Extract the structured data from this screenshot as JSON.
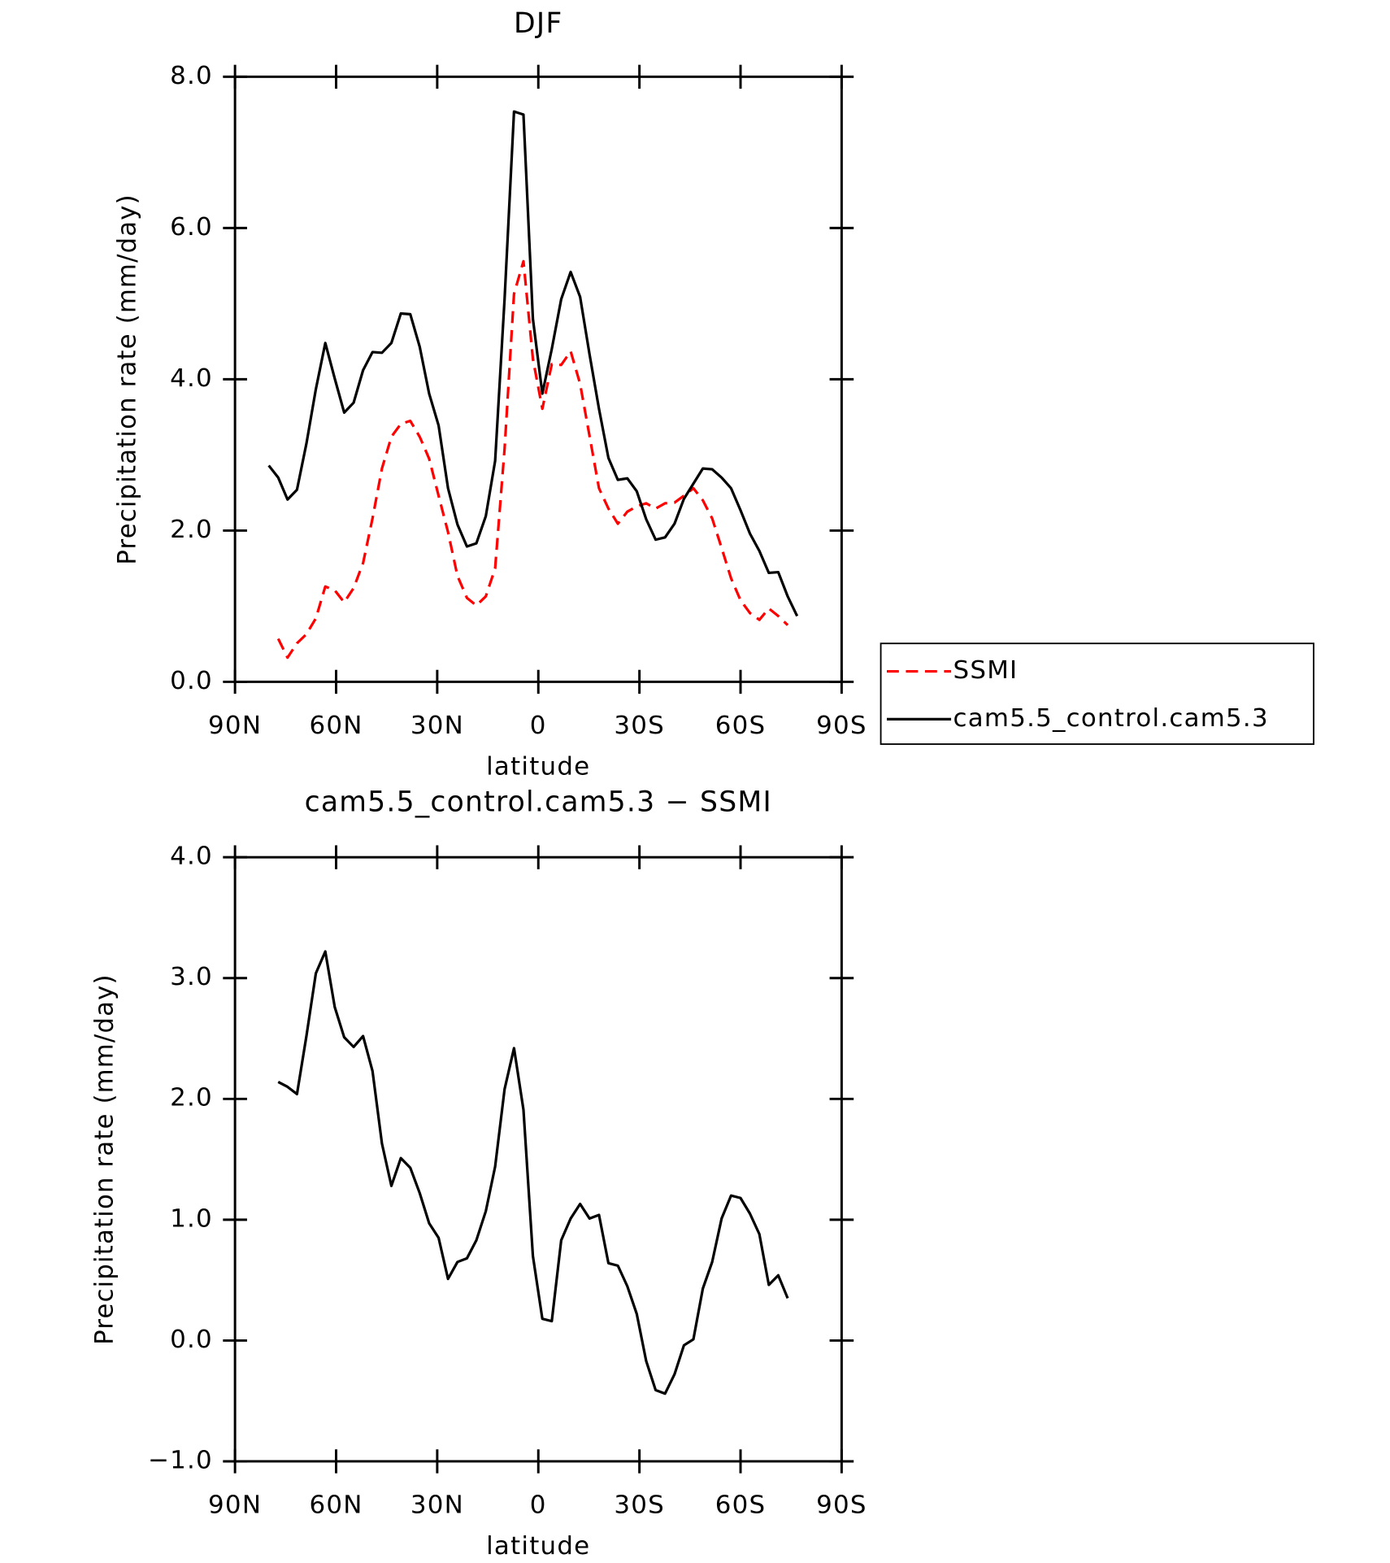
{
  "chart_data": [
    {
      "type": "line",
      "title": "DJF",
      "xlabel": "latitude",
      "ylabel": "Precipitation rate (mm/day)",
      "x": [
        80,
        77.2,
        74.4,
        71.6,
        68.8,
        66,
        63.2,
        60.4,
        57.6,
        54.8,
        52,
        49.2,
        46.4,
        43.6,
        40.8,
        38,
        35.2,
        32.4,
        29.6,
        26.8,
        24,
        21.2,
        18.4,
        15.6,
        12.8,
        10,
        7.2,
        4.4,
        1.6,
        -1.2,
        -4,
        -6.8,
        -9.6,
        -12.4,
        -15.2,
        -18,
        -20.8,
        -23.6,
        -26.4,
        -29.2,
        -32,
        -34.8,
        -37.6,
        -40.4,
        -43.2,
        -46,
        -48.8,
        -51.6,
        -54.4,
        -57.2,
        -60,
        -62.8,
        -65.6,
        -68.4,
        -71.2,
        -74,
        -76.8
      ],
      "series": [
        {
          "name": "SSMI",
          "color": "#ff0000",
          "style": "dashed",
          "values": [
            null,
            0.57,
            0.32,
            0.51,
            0.63,
            0.84,
            1.26,
            1.21,
            1.05,
            1.24,
            1.57,
            2.16,
            2.82,
            3.24,
            3.41,
            3.45,
            3.24,
            2.95,
            2.46,
            1.98,
            1.4,
            1.11,
            1.01,
            1.13,
            1.5,
            3.08,
            5.13,
            5.56,
            4.27,
            3.61,
            4.2,
            4.19,
            4.37,
            3.94,
            3.25,
            2.56,
            2.29,
            2.09,
            2.25,
            2.32,
            2.36,
            2.29,
            2.36,
            2.37,
            2.46,
            2.56,
            2.4,
            2.16,
            1.77,
            1.37,
            1.08,
            0.91,
            0.82,
            0.97,
            0.87,
            0.75,
            null
          ]
        },
        {
          "name": "cam5.5_control.cam5.3",
          "color": "#000000",
          "style": "solid",
          "values": [
            2.86,
            2.7,
            2.41,
            2.54,
            3.15,
            3.87,
            4.48,
            4.01,
            3.56,
            3.69,
            4.12,
            4.36,
            4.35,
            4.48,
            4.87,
            4.86,
            4.43,
            3.81,
            3.39,
            2.56,
            2.08,
            1.79,
            1.83,
            2.19,
            2.92,
            5.06,
            7.54,
            7.5,
            4.8,
            3.81,
            4.4,
            5.06,
            5.42,
            5.09,
            4.33,
            3.61,
            2.96,
            2.67,
            2.69,
            2.52,
            2.15,
            1.88,
            1.91,
            2.09,
            2.42,
            2.62,
            2.82,
            2.81,
            2.7,
            2.56,
            2.27,
            1.96,
            1.73,
            1.44,
            1.45,
            1.13,
            0.87
          ]
        }
      ],
      "xlim": [
        90,
        -90
      ],
      "xticks": [
        {
          "value": 90,
          "label": "90N"
        },
        {
          "value": 60,
          "label": "60N"
        },
        {
          "value": 30,
          "label": "30N"
        },
        0,
        {
          "value": -30,
          "label": "30S"
        },
        {
          "value": -60,
          "label": "60S"
        },
        {
          "value": -90,
          "label": "90S"
        }
      ],
      "ylim": [
        0,
        8
      ],
      "yticks": [
        {
          "value": 0,
          "label": "0.0"
        },
        {
          "value": 2,
          "label": "2.0"
        },
        {
          "value": 4,
          "label": "4.0"
        },
        {
          "value": 6,
          "label": "6.0"
        },
        {
          "value": 8,
          "label": "8.0"
        }
      ],
      "legend": "right"
    },
    {
      "type": "line",
      "title": "cam5.5_control.cam5.3 − SSMI",
      "xlabel": "latitude",
      "ylabel": "Precipitation rate (mm/day)",
      "x": [
        80,
        77.2,
        74.4,
        71.6,
        68.8,
        66,
        63.2,
        60.4,
        57.6,
        54.8,
        52,
        49.2,
        46.4,
        43.6,
        40.8,
        38,
        35.2,
        32.4,
        29.6,
        26.8,
        24,
        21.2,
        18.4,
        15.6,
        12.8,
        10,
        7.2,
        4.4,
        1.6,
        -1.2,
        -4,
        -6.8,
        -9.6,
        -12.4,
        -15.2,
        -18,
        -20.8,
        -23.6,
        -26.4,
        -29.2,
        -32,
        -34.8,
        -37.6,
        -40.4,
        -43.2,
        -46,
        -48.8,
        -51.6,
        -54.4,
        -57.2,
        -60,
        -62.8,
        -65.6,
        -68.4,
        -71.2,
        -74,
        -76.8
      ],
      "series": [
        {
          "color": "#000000",
          "style": "solid",
          "values": [
            null,
            2.14,
            2.1,
            2.04,
            2.52,
            3.04,
            3.22,
            2.76,
            2.51,
            2.43,
            2.52,
            2.23,
            1.63,
            1.28,
            1.51,
            1.43,
            1.22,
            0.97,
            0.85,
            0.51,
            0.65,
            0.68,
            0.83,
            1.07,
            1.44,
            2.08,
            2.42,
            1.91,
            0.7,
            0.18,
            0.16,
            0.83,
            1.01,
            1.13,
            1.01,
            1.04,
            0.64,
            0.62,
            0.45,
            0.22,
            -0.17,
            -0.41,
            -0.44,
            -0.28,
            -0.04,
            0.01,
            0.43,
            0.65,
            1.01,
            1.2,
            1.18,
            1.05,
            0.88,
            0.46,
            0.54,
            0.35,
            null
          ]
        }
      ],
      "xlim": [
        90,
        -90
      ],
      "xticks": [
        {
          "value": 90,
          "label": "90N"
        },
        {
          "value": 60,
          "label": "60N"
        },
        {
          "value": 30,
          "label": "30N"
        },
        0,
        {
          "value": -30,
          "label": "30S"
        },
        {
          "value": -60,
          "label": "60S"
        },
        {
          "value": -90,
          "label": "90S"
        }
      ],
      "ylim": [
        -1,
        4
      ],
      "yticks": [
        {
          "value": -1,
          "label": "−1.0"
        },
        {
          "value": 0,
          "label": "0.0"
        },
        {
          "value": 1,
          "label": "1.0"
        },
        {
          "value": 2,
          "label": "2.0"
        },
        {
          "value": 3,
          "label": "3.0"
        },
        {
          "value": 4,
          "label": "4.0"
        }
      ]
    }
  ]
}
